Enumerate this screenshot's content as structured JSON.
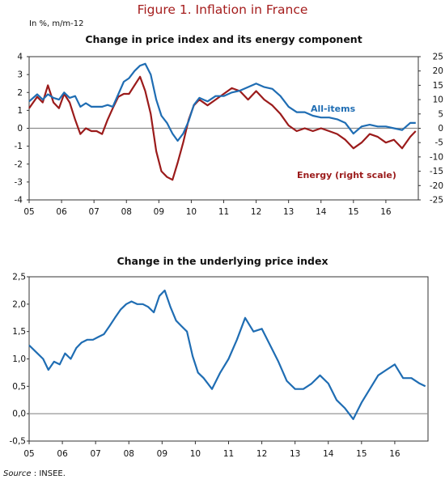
{
  "figure": {
    "title": "Figure 1. Inflation in France",
    "unit_note": "In %, m/m-12",
    "source_label": "Source",
    "source_text": ": INSEE."
  },
  "colors": {
    "all_items": "#1f6db3",
    "energy": "#9b1b1b",
    "title": "#a51d1d",
    "axis": "#333333",
    "zero_line": "#8c8c8c"
  },
  "chart_data": [
    {
      "type": "line",
      "title": "Change in price index and its energy component",
      "x_tick_labels": [
        "05",
        "06",
        "07",
        "08",
        "09",
        "10",
        "11",
        "12",
        "13",
        "14",
        "15",
        "16"
      ],
      "xlim": [
        2005.0,
        2017.0
      ],
      "ylim": [
        -4,
        4
      ],
      "y_ticks": [
        "4",
        "3",
        "2",
        "1",
        "0",
        "-1",
        "-2",
        "-3",
        "-4"
      ],
      "y2lim": [
        -25,
        25
      ],
      "y2_ticks": [
        "25",
        "20",
        "15",
        "10",
        "5",
        "0",
        "-5",
        "-10",
        "-15",
        "-20",
        "-25"
      ],
      "grid": false,
      "series": [
        {
          "name": "All-items",
          "axis": "left",
          "x": [
            2005.0,
            2005.25,
            2005.42,
            2005.58,
            2005.75,
            2005.92,
            2006.08,
            2006.25,
            2006.42,
            2006.58,
            2006.75,
            2006.92,
            2007.08,
            2007.25,
            2007.42,
            2007.58,
            2007.75,
            2007.92,
            2008.08,
            2008.25,
            2008.42,
            2008.58,
            2008.75,
            2008.92,
            2009.08,
            2009.25,
            2009.42,
            2009.58,
            2009.75,
            2009.92,
            2010.08,
            2010.25,
            2010.5,
            2010.75,
            2011.0,
            2011.25,
            2011.5,
            2011.75,
            2012.0,
            2012.25,
            2012.5,
            2012.75,
            2013.0,
            2013.25,
            2013.5,
            2013.75,
            2014.0,
            2014.25,
            2014.5,
            2014.75,
            2015.0,
            2015.25,
            2015.5,
            2015.75,
            2016.0,
            2016.25,
            2016.5,
            2016.75,
            2016.92
          ],
          "y": [
            1.5,
            1.9,
            1.6,
            1.9,
            1.7,
            1.6,
            2.0,
            1.7,
            1.8,
            1.2,
            1.4,
            1.2,
            1.2,
            1.2,
            1.3,
            1.2,
            1.9,
            2.6,
            2.8,
            3.2,
            3.5,
            3.6,
            3.0,
            1.6,
            0.7,
            0.3,
            -0.3,
            -0.7,
            -0.3,
            0.4,
            1.3,
            1.7,
            1.5,
            1.8,
            1.8,
            2.0,
            2.1,
            2.3,
            2.5,
            2.3,
            2.2,
            1.8,
            1.2,
            0.9,
            0.9,
            0.7,
            0.6,
            0.6,
            0.5,
            0.3,
            -0.3,
            0.1,
            0.2,
            0.1,
            0.1,
            0.0,
            -0.1,
            0.3,
            0.3
          ]
        },
        {
          "name": "Energy (right scale)",
          "axis": "right",
          "x": [
            2005.0,
            2005.25,
            2005.42,
            2005.58,
            2005.75,
            2005.92,
            2006.08,
            2006.25,
            2006.42,
            2006.58,
            2006.75,
            2006.92,
            2007.08,
            2007.25,
            2007.42,
            2007.58,
            2007.75,
            2007.92,
            2008.08,
            2008.25,
            2008.42,
            2008.58,
            2008.75,
            2008.92,
            2009.08,
            2009.25,
            2009.42,
            2009.58,
            2009.75,
            2009.92,
            2010.08,
            2010.25,
            2010.5,
            2010.75,
            2011.0,
            2011.25,
            2011.5,
            2011.75,
            2012.0,
            2012.25,
            2012.5,
            2012.75,
            2013.0,
            2013.25,
            2013.5,
            2013.75,
            2014.0,
            2014.25,
            2014.5,
            2014.75,
            2015.0,
            2015.25,
            2015.5,
            2015.75,
            2016.0,
            2016.25,
            2016.5,
            2016.75,
            2016.92
          ],
          "y": [
            7,
            11,
            9,
            15,
            9,
            7,
            12,
            9,
            3,
            -2,
            0,
            -1,
            -1,
            -2,
            3,
            7,
            11,
            12,
            12,
            15,
            18,
            13,
            5,
            -8,
            -15,
            -17,
            -18,
            -12,
            -5,
            3,
            8,
            10,
            8,
            10,
            12,
            14,
            13,
            10,
            13,
            10,
            8,
            5,
            1,
            -1,
            0,
            -1,
            0,
            -1,
            -2,
            -4,
            -7,
            -5,
            -2,
            -3,
            -5,
            -4,
            -7,
            -3,
            -1
          ]
        }
      ],
      "annotations": [
        "All-items",
        "Energy (right scale)"
      ]
    },
    {
      "type": "line",
      "title": "Change in the underlying price index",
      "x_tick_labels": [
        "05",
        "06",
        "07",
        "08",
        "09",
        "10",
        "11",
        "12",
        "13",
        "14",
        "15",
        "16"
      ],
      "xlim": [
        2005.0,
        2017.0
      ],
      "ylim": [
        -0.5,
        2.5
      ],
      "y_ticks": [
        "2,5",
        "2,0",
        "1,5",
        "1,0",
        "0,5",
        "0,0",
        "-0,5"
      ],
      "grid": false,
      "series": [
        {
          "x": [
            2005.0,
            2005.25,
            2005.42,
            2005.58,
            2005.75,
            2005.92,
            2006.08,
            2006.25,
            2006.42,
            2006.58,
            2006.75,
            2006.92,
            2007.08,
            2007.25,
            2007.42,
            2007.58,
            2007.75,
            2007.92,
            2008.08,
            2008.25,
            2008.42,
            2008.58,
            2008.75,
            2008.92,
            2009.08,
            2009.25,
            2009.42,
            2009.58,
            2009.75,
            2009.92,
            2010.08,
            2010.25,
            2010.5,
            2010.75,
            2011.0,
            2011.25,
            2011.5,
            2011.75,
            2012.0,
            2012.25,
            2012.5,
            2012.75,
            2013.0,
            2013.25,
            2013.5,
            2013.75,
            2014.0,
            2014.25,
            2014.5,
            2014.75,
            2015.0,
            2015.25,
            2015.5,
            2015.75,
            2016.0,
            2016.25,
            2016.5,
            2016.75,
            2016.92
          ],
          "y": [
            1.25,
            1.1,
            1.0,
            0.8,
            0.95,
            0.9,
            1.1,
            1.0,
            1.2,
            1.3,
            1.35,
            1.35,
            1.4,
            1.45,
            1.6,
            1.75,
            1.9,
            2.0,
            2.05,
            2.0,
            2.0,
            1.95,
            1.85,
            2.15,
            2.25,
            1.95,
            1.7,
            1.6,
            1.5,
            1.05,
            0.75,
            0.65,
            0.45,
            0.75,
            1.0,
            1.35,
            1.75,
            1.5,
            1.55,
            1.25,
            0.95,
            0.6,
            0.45,
            0.45,
            0.55,
            0.7,
            0.55,
            0.25,
            0.1,
            -0.1,
            0.2,
            0.45,
            0.7,
            0.8,
            0.9,
            0.65,
            0.65,
            0.55,
            0.5
          ]
        }
      ]
    }
  ]
}
